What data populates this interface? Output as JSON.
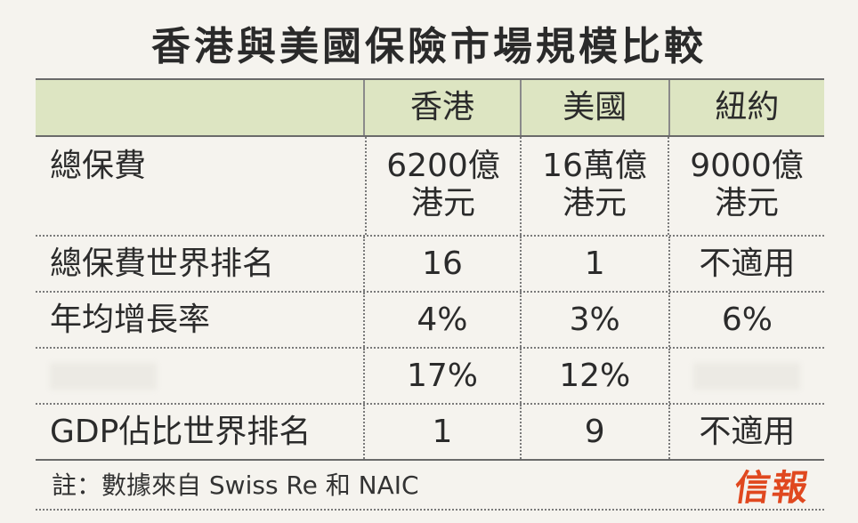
{
  "title": "香港與美國保險市場規模比較",
  "table": {
    "headers": [
      "",
      "香港",
      "美國",
      "紐約"
    ],
    "rows": [
      {
        "label": "總保費",
        "values": [
          "6200億\n港元",
          "16萬億\n港元",
          "9000億\n港元"
        ]
      },
      {
        "label": "總保費世界排名",
        "values": [
          "16",
          "1",
          "不適用"
        ]
      },
      {
        "label": "年均增長率",
        "values": [
          "4%",
          "3%",
          "6%"
        ]
      },
      {
        "label": "",
        "values": [
          "17%",
          "12%",
          ""
        ]
      },
      {
        "label": "GDP佔比世界排名",
        "values": [
          "1",
          "9",
          "不適用"
        ]
      }
    ]
  },
  "note": "註：數據來自 Swiss Re 和 NAIC",
  "logo": "信報",
  "colors": {
    "header_bg": "#dde5c2",
    "logo": "#e0481f"
  }
}
